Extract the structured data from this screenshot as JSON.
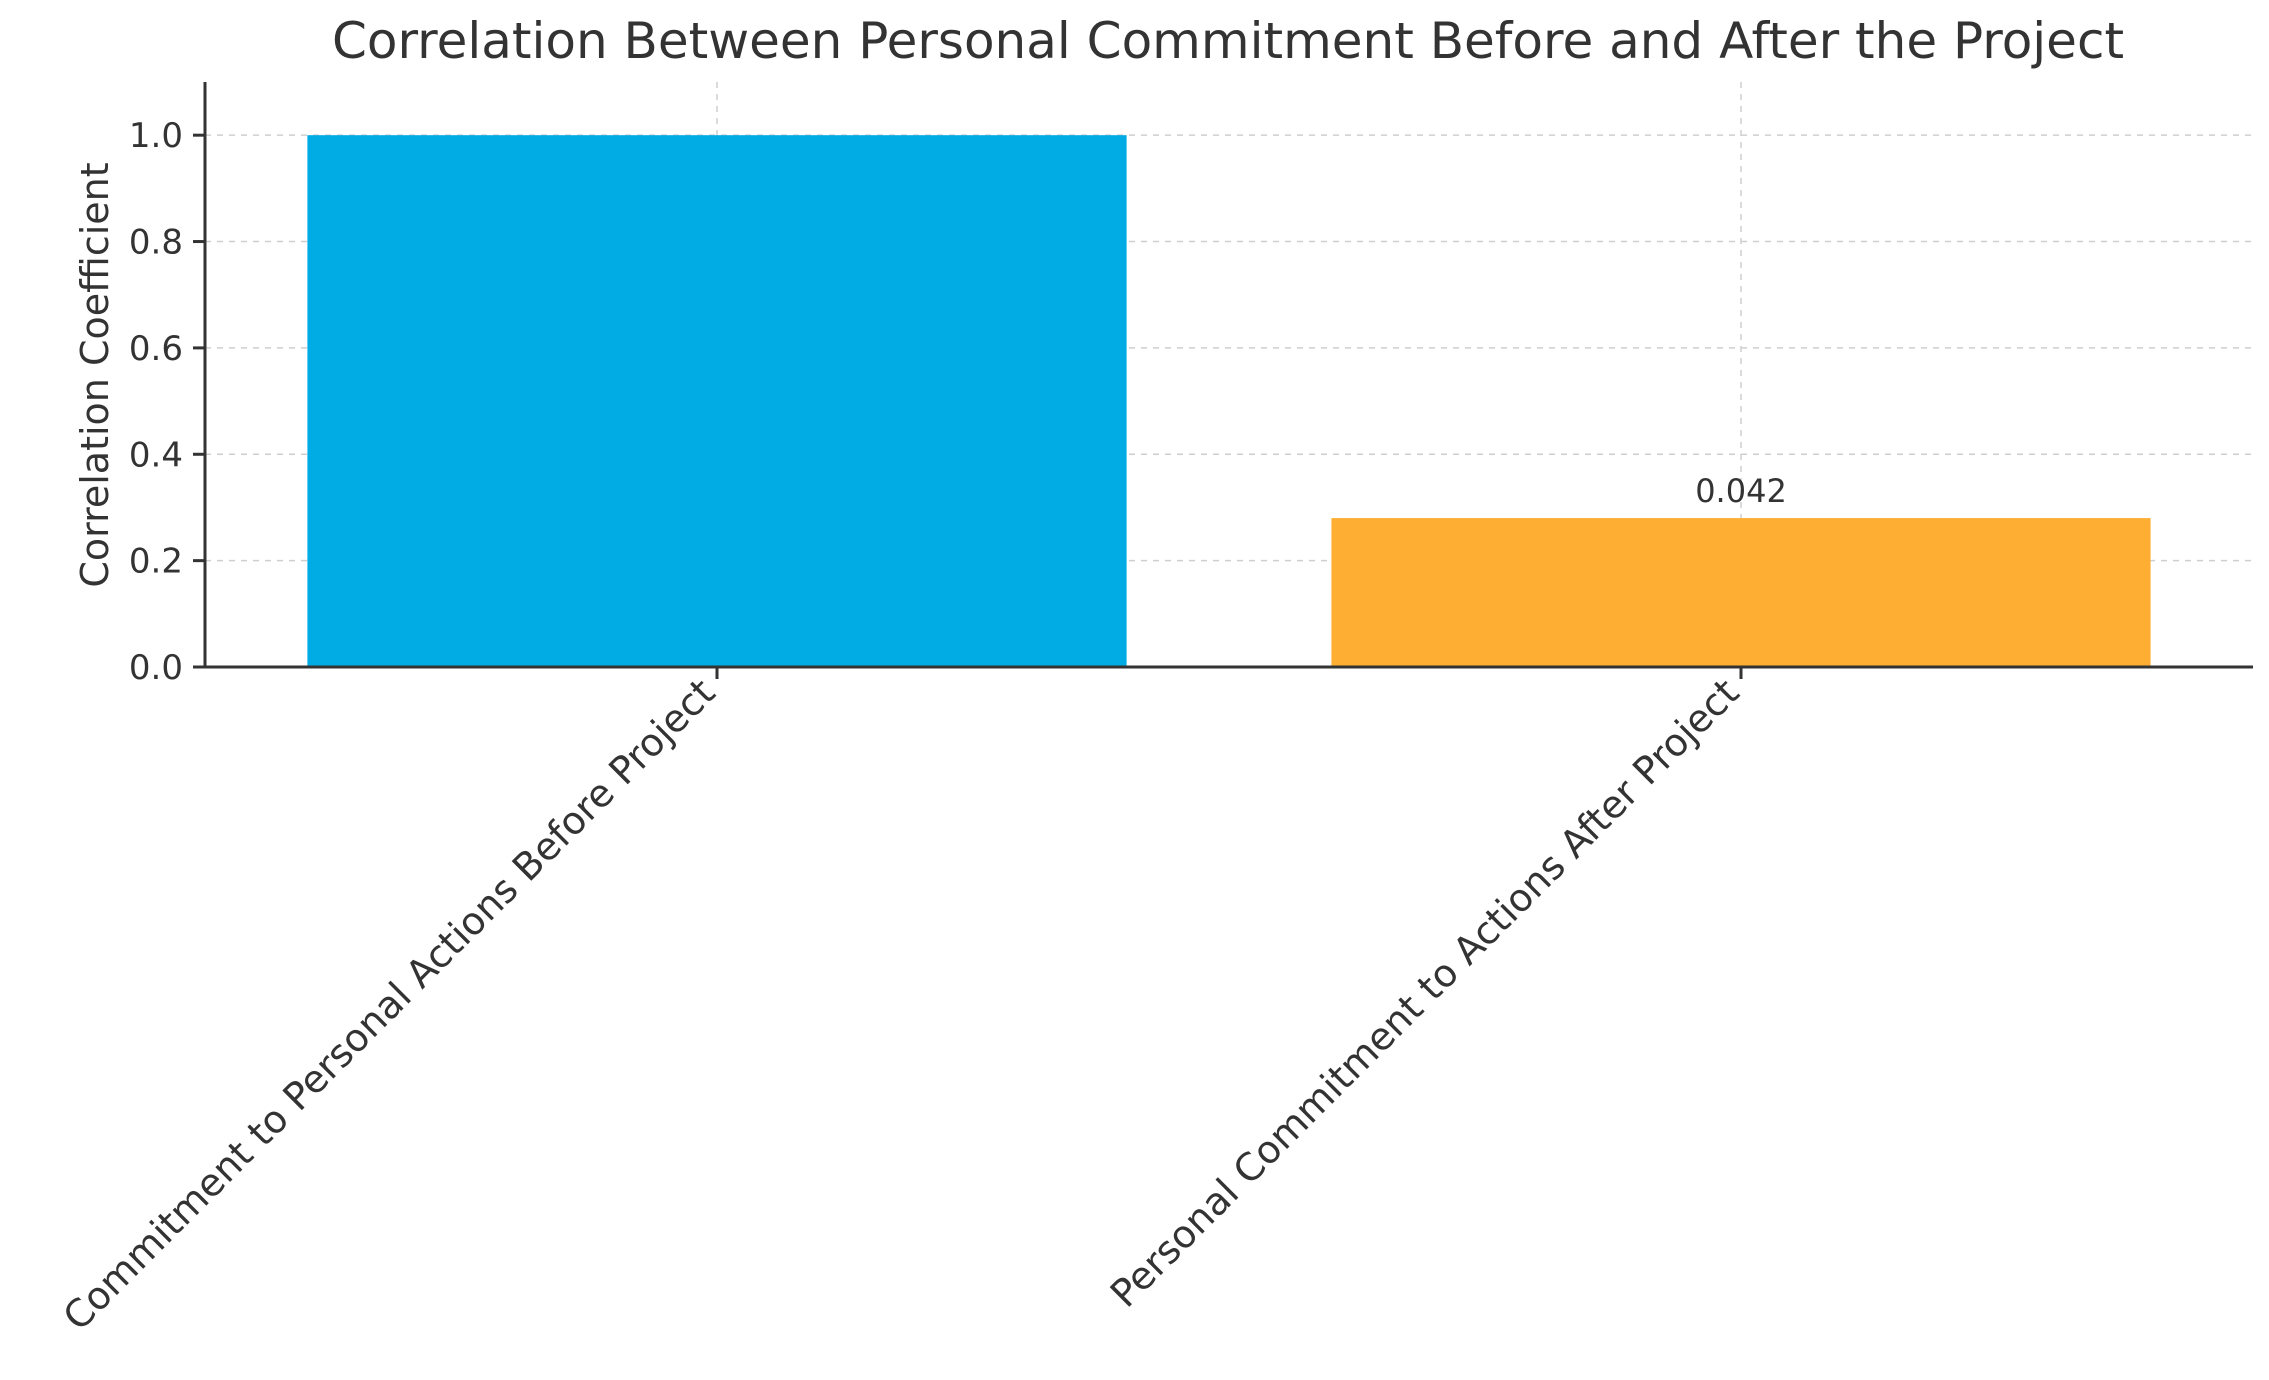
{
  "chart_data": {
    "type": "bar",
    "title": "Correlation Between Personal Commitment Before and After the Project",
    "xlabel": "",
    "ylabel": "Correlation Coefficient",
    "categories": [
      "Commitment to Personal Actions Before Project",
      "Personal Commitment to Actions After Project"
    ],
    "values": [
      1.0,
      0.28
    ],
    "data_labels": [
      "",
      "0.042"
    ],
    "colors": [
      "#00ACE3",
      "#FFAE34"
    ],
    "ylim": [
      0,
      1.1
    ],
    "yticks": [
      0.0,
      0.2,
      0.4,
      0.6,
      0.8,
      1.0
    ],
    "ytick_labels": [
      "0.0",
      "0.2",
      "0.4",
      "0.6",
      "0.8",
      "1.0"
    ],
    "grid": true,
    "legend": "none"
  }
}
